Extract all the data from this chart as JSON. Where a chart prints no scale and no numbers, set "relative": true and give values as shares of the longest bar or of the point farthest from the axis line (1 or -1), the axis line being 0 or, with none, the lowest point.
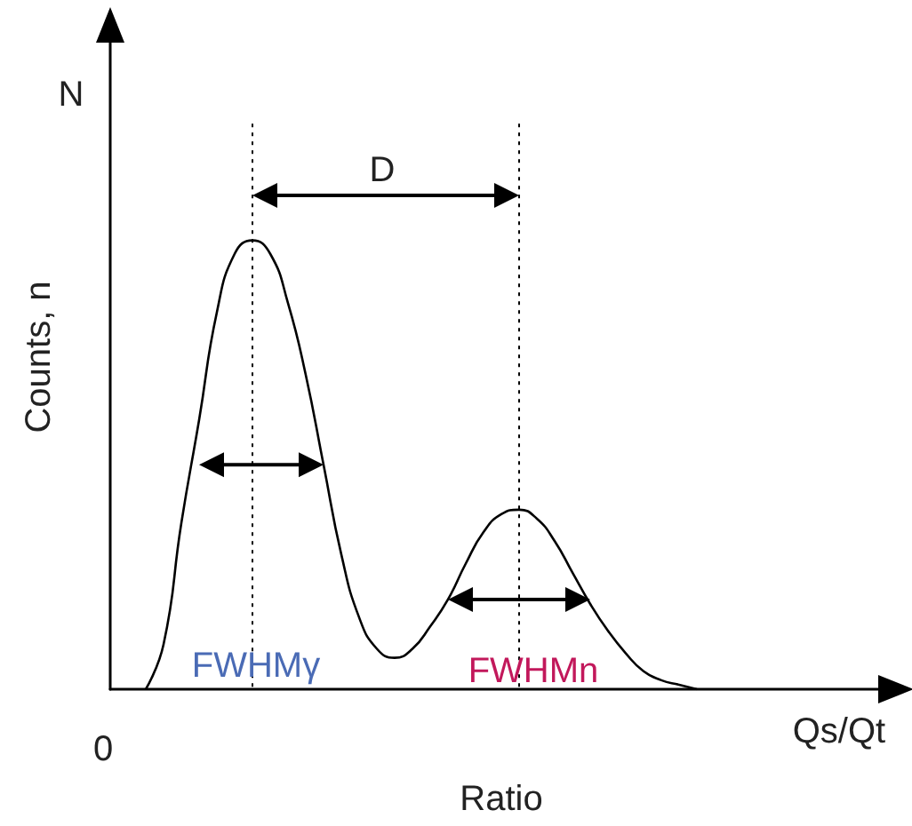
{
  "chart_data": {
    "type": "line",
    "relative": true,
    "xlabel": "Ratio",
    "ylabel": "Counts, n",
    "marker": "none",
    "categories": [
      null,
      null,
      null,
      null,
      null,
      null,
      null,
      null,
      null,
      null,
      null,
      null,
      null,
      null,
      null,
      null,
      null,
      null,
      null,
      null,
      null,
      null,
      null,
      null,
      null,
      null,
      null,
      null,
      null,
      null,
      null,
      null,
      null,
      null,
      null,
      null,
      null,
      null,
      null,
      null,
      null,
      null,
      null,
      null,
      null
    ],
    "series": [
      {
        "color": "#000000",
        "values": [
          null,
          null,
          0,
          0.1,
          0.37,
          0.6,
          0.84,
          0.97,
          1,
          0.97,
          0.86,
          0.7,
          0.5,
          0.3,
          0.16,
          0.09,
          0.07,
          0.09,
          0.14,
          0.2,
          0.28,
          0.35,
          0.39,
          0.4,
          0.38,
          0.33,
          0.26,
          0.19,
          0.13,
          0.08,
          0.04,
          0.02,
          0.01,
          0,
          null,
          null,
          null,
          null,
          null,
          null,
          null,
          null,
          null,
          null,
          null
        ]
      }
    ],
    "annotations": [
      "N",
      "0",
      "Qs/Qt",
      "D",
      "FWHMγ",
      "FWHMn"
    ]
  }
}
